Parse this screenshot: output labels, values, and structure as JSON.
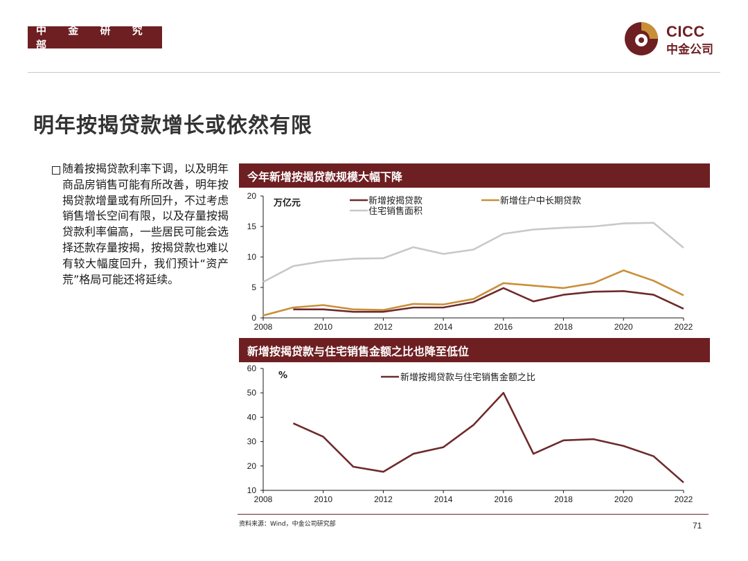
{
  "header": {
    "department": "中 金 研 究 部",
    "logo_en": "CICC",
    "logo_cn": "中金公司"
  },
  "page": {
    "title": "明年按揭贷款增长或依然有限",
    "number": "71"
  },
  "bullet": {
    "text": "随着按揭贷款利率下调，以及明年商品房销售可能有所改善，明年按揭贷款增量或有所回升，不过考虑销售增长空间有限，以及存量按揭贷款利率偏高，一些居民可能会选择还款存量按揭，按揭贷款也难以有较大幅度回升，我们预计“资产荒”格局可能还将延续。"
  },
  "footer": {
    "source": "资料来源：Wind，中金公司研究部"
  },
  "colors": {
    "brand": "#6e1f22",
    "series_mortgage": "#6e2a2b",
    "series_household": "#c98f38",
    "series_area": "#c8c8c8"
  },
  "chart_data": [
    {
      "type": "line",
      "title": "今年新增按揭贷款规模大幅下降",
      "unit": "万亿元",
      "x": [
        2008,
        2009,
        2010,
        2011,
        2012,
        2013,
        2014,
        2015,
        2016,
        2017,
        2018,
        2019,
        2020,
        2021,
        2022
      ],
      "xticks": [
        2008,
        2010,
        2012,
        2014,
        2016,
        2018,
        2020,
        2022
      ],
      "ylim": [
        0,
        20
      ],
      "yticks": [
        0,
        5,
        10,
        15,
        20
      ],
      "series": [
        {
          "name": "新增按揭贷款",
          "color": "#6e2a2b",
          "values": [
            null,
            1.4,
            1.4,
            1.0,
            1.0,
            1.7,
            1.7,
            2.6,
            4.9,
            2.7,
            3.8,
            4.3,
            4.4,
            3.8,
            1.5
          ]
        },
        {
          "name": "新增住户中长期贷款",
          "color": "#c98f38",
          "values": [
            0.4,
            1.7,
            2.1,
            1.4,
            1.3,
            2.3,
            2.2,
            3.1,
            5.7,
            5.3,
            4.9,
            5.7,
            7.8,
            6.1,
            3.7
          ]
        },
        {
          "name": "住宅销售面积",
          "color": "#c8c8c8",
          "values": [
            5.9,
            8.5,
            9.3,
            9.7,
            9.8,
            11.6,
            10.5,
            11.2,
            13.8,
            14.5,
            14.8,
            15.0,
            15.5,
            15.6,
            11.5
          ]
        }
      ]
    },
    {
      "type": "line",
      "title": "新增按揭贷款与住宅销售金额之比也降至低位",
      "unit": "%",
      "x": [
        2008,
        2009,
        2010,
        2011,
        2012,
        2013,
        2014,
        2015,
        2016,
        2017,
        2018,
        2019,
        2020,
        2021,
        2022
      ],
      "xticks": [
        2008,
        2010,
        2012,
        2014,
        2016,
        2018,
        2020,
        2022
      ],
      "ylim": [
        10,
        60
      ],
      "yticks": [
        10,
        20,
        30,
        40,
        50,
        60
      ],
      "series": [
        {
          "name": "新增按揭贷款与住宅销售金额之比",
          "color": "#6e2a2b",
          "values": [
            null,
            37.5,
            32.0,
            19.7,
            17.6,
            25.0,
            27.7,
            36.8,
            50.0,
            25.0,
            30.5,
            31.0,
            28.2,
            24.0,
            13.2
          ]
        }
      ]
    }
  ]
}
